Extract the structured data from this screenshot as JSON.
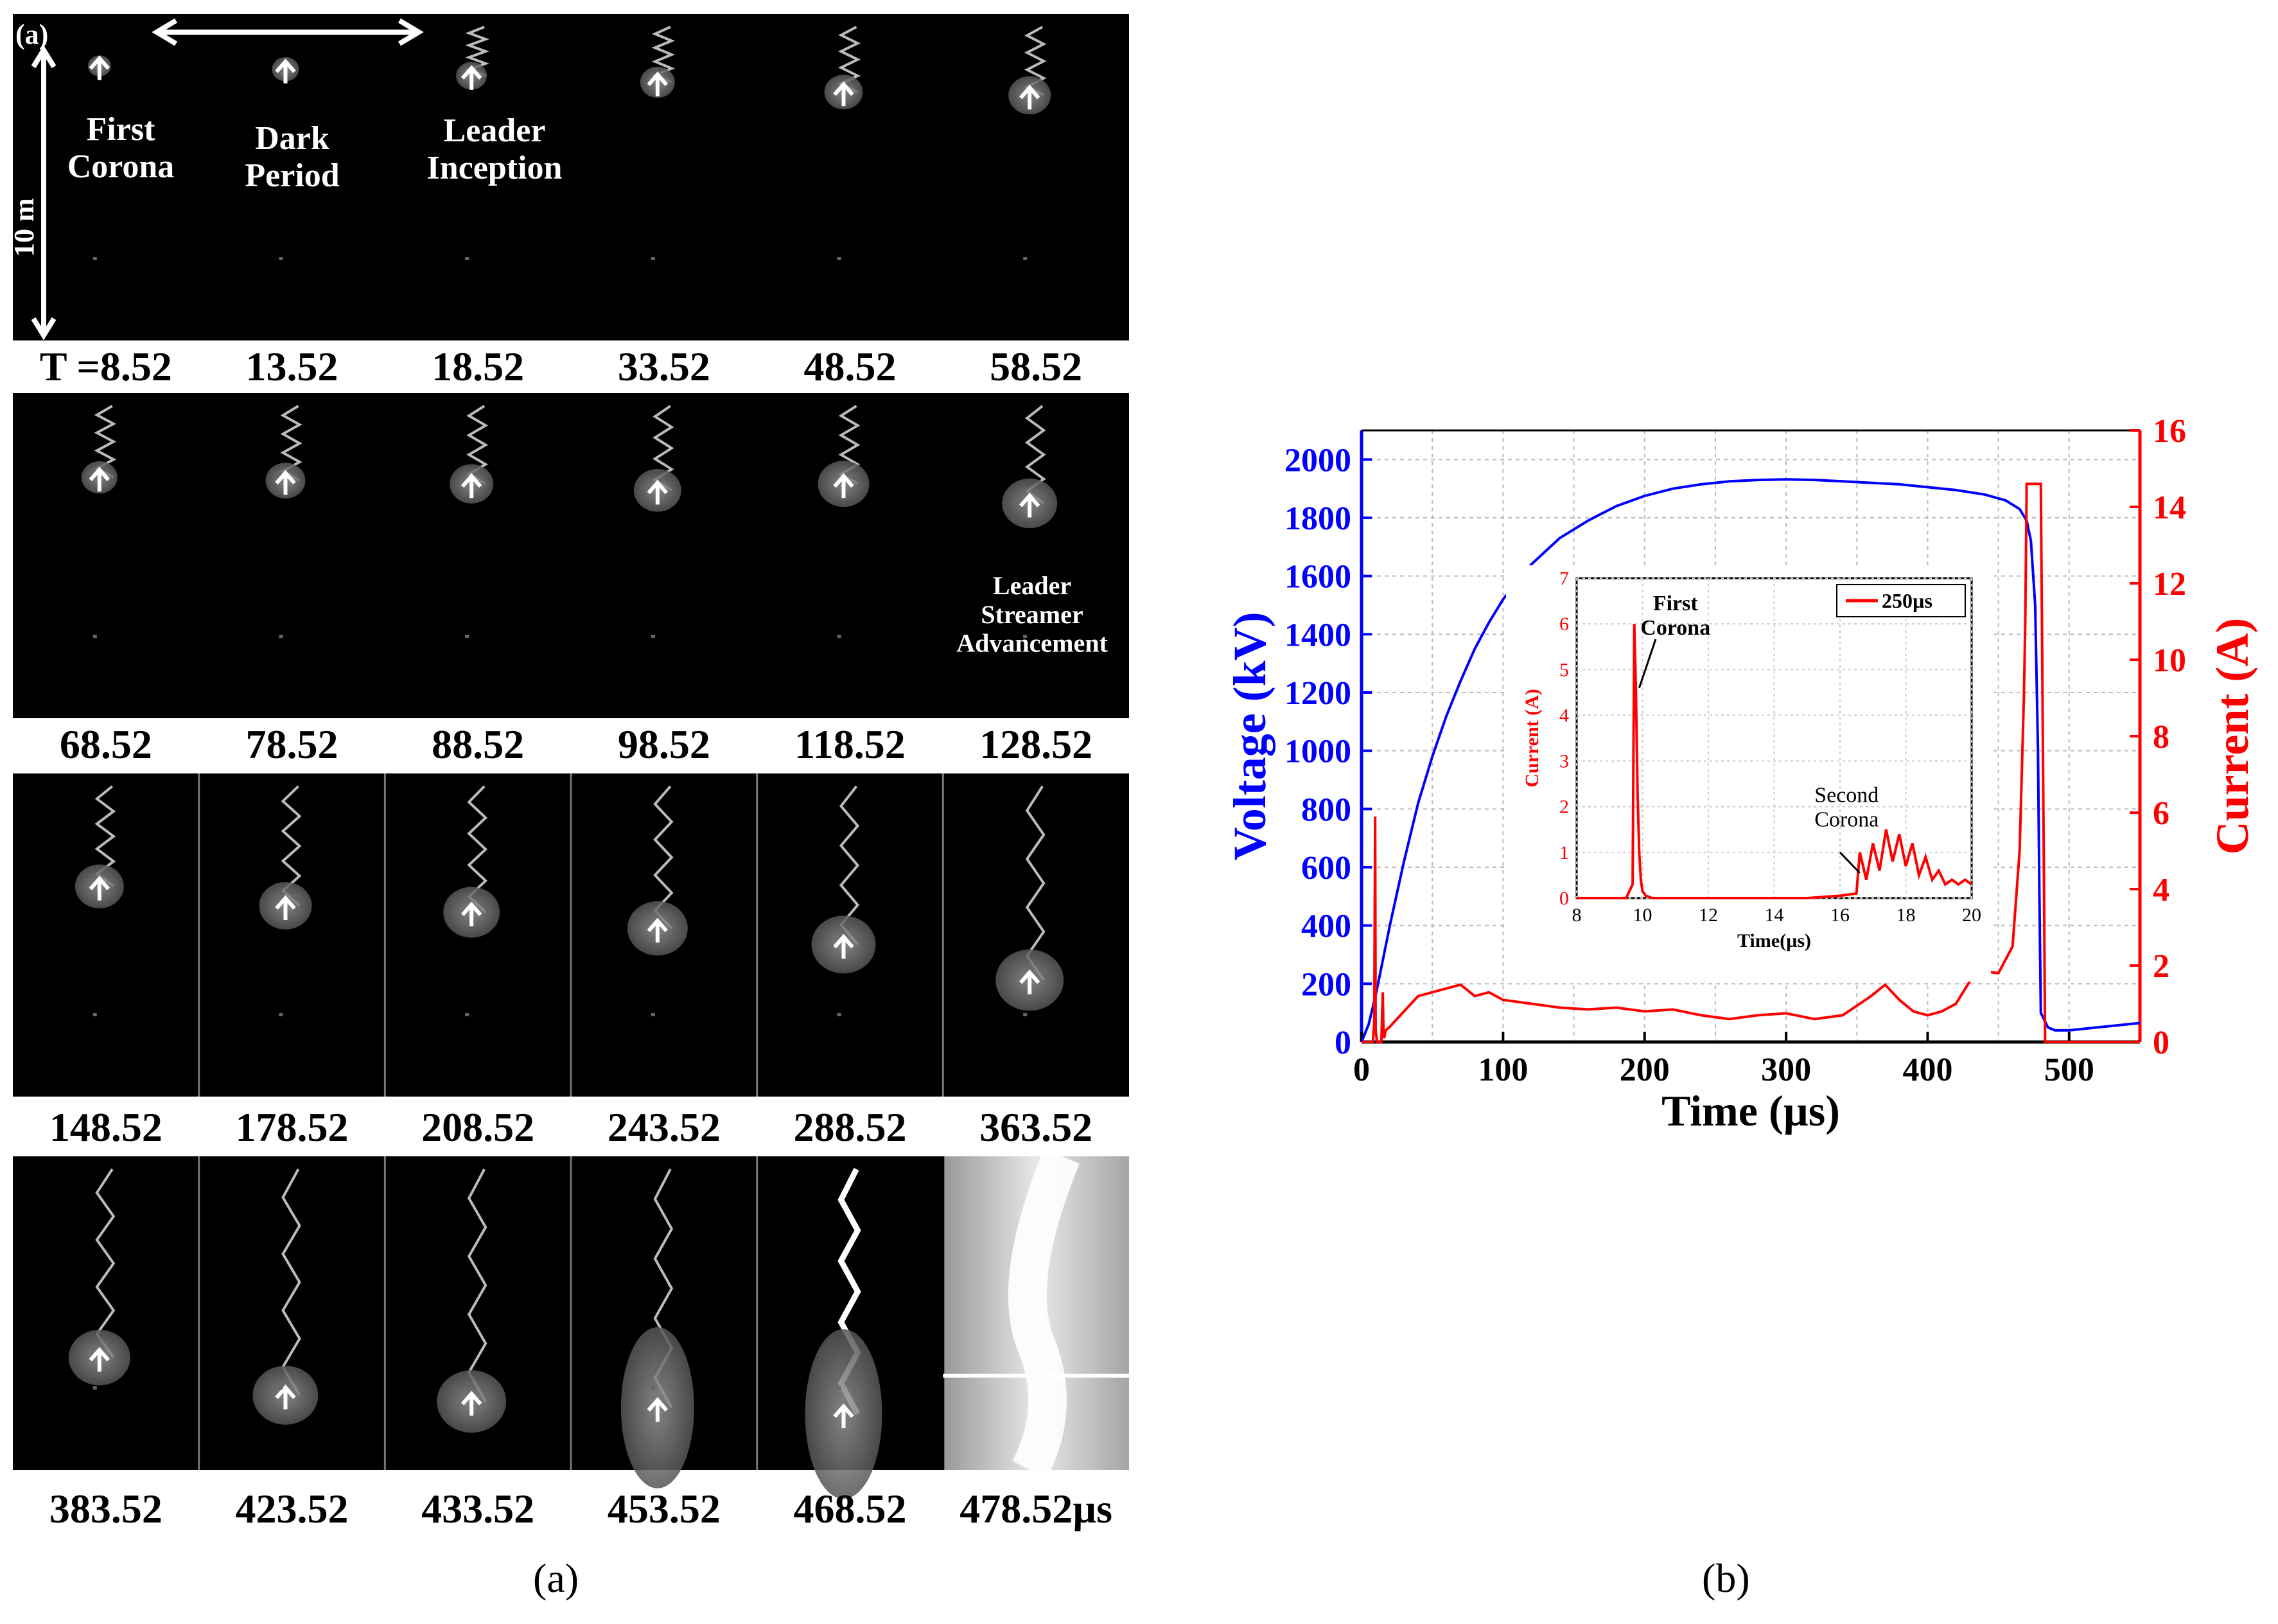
{
  "panel_a": {
    "panel_tag": "(a)",
    "scale_label": "10 m",
    "time_prefix": "T =",
    "time_unit": "µs",
    "phase_labels": {
      "first_corona": [
        "First",
        "Corona"
      ],
      "dark_period": [
        "Dark",
        "Period"
      ],
      "leader_inception": [
        "Leader",
        "Inception"
      ],
      "leader_streamer": [
        "Leader",
        "Streamer",
        "Advancement"
      ]
    },
    "rows": [
      [
        "8.52",
        "13.52",
        "18.52",
        "33.52",
        "48.52",
        "58.52"
      ],
      [
        "68.52",
        "78.52",
        "88.52",
        "98.52",
        "118.52",
        "128.52"
      ],
      [
        "148.52",
        "178.52",
        "208.52",
        "243.52",
        "288.52",
        "363.52"
      ],
      [
        "383.52",
        "423.52",
        "433.52",
        "453.52",
        "468.52",
        "478.52"
      ]
    ]
  },
  "captions": {
    "a": "(a)",
    "b": "(b)"
  },
  "chart_data": [
    {
      "type": "line",
      "title": "",
      "xlabel": "Time (µs)",
      "ylabel": "Voltage (kV)",
      "y2label": "Current (A)",
      "xlim": [
        0,
        550
      ],
      "ylim": [
        0,
        2100
      ],
      "y2lim": [
        0,
        16
      ],
      "xticks": [
        0,
        100,
        200,
        300,
        400,
        500
      ],
      "yticks": [
        0,
        200,
        400,
        600,
        800,
        1000,
        1200,
        1400,
        1600,
        1800,
        2000
      ],
      "y2ticks": [
        0,
        2,
        4,
        6,
        8,
        10,
        12,
        14,
        16
      ],
      "grid": true,
      "colors": {
        "voltage": "#0000ff",
        "current": "#ff0000"
      },
      "series": [
        {
          "name": "Voltage",
          "axis": "left",
          "x": [
            0,
            5,
            10,
            20,
            30,
            40,
            50,
            60,
            70,
            80,
            90,
            100,
            120,
            140,
            160,
            180,
            200,
            220,
            240,
            260,
            280,
            300,
            320,
            340,
            360,
            380,
            400,
            420,
            440,
            455,
            465,
            470,
            473,
            476,
            478,
            479,
            480,
            485,
            490,
            500,
            520,
            540,
            550
          ],
          "values": [
            0,
            60,
            160,
            400,
            620,
            820,
            980,
            1120,
            1240,
            1350,
            1440,
            1520,
            1640,
            1730,
            1790,
            1840,
            1875,
            1900,
            1915,
            1925,
            1930,
            1932,
            1930,
            1925,
            1920,
            1915,
            1905,
            1895,
            1880,
            1860,
            1830,
            1790,
            1720,
            1500,
            1000,
            500,
            100,
            50,
            40,
            40,
            50,
            60,
            65
          ]
        },
        {
          "name": "Current",
          "axis": "right",
          "x": [
            0,
            8,
            9,
            9.6,
            10,
            11,
            12,
            14,
            15,
            15.5,
            16,
            17,
            20,
            30,
            40,
            50,
            60,
            70,
            80,
            90,
            100,
            120,
            140,
            160,
            180,
            200,
            220,
            240,
            260,
            280,
            300,
            320,
            340,
            360,
            370,
            380,
            390,
            400,
            410,
            420,
            430,
            435,
            440,
            450,
            460,
            465,
            468,
            469,
            470,
            471,
            480,
            481,
            482,
            483,
            490,
            550
          ],
          "values": [
            0,
            0,
            0.5,
            5.9,
            0.3,
            0,
            0,
            0,
            1.3,
            0.2,
            0.1,
            0.3,
            0.4,
            0.8,
            1.2,
            1.3,
            1.4,
            1.5,
            1.2,
            1.3,
            1.1,
            1.0,
            0.9,
            0.85,
            0.9,
            0.8,
            0.85,
            0.7,
            0.6,
            0.7,
            0.75,
            0.6,
            0.7,
            1.2,
            1.5,
            1.1,
            0.8,
            0.7,
            0.8,
            1.0,
            1.6,
            1.9,
            1.85,
            1.8,
            2.5,
            5.0,
            9.0,
            11.0,
            14.6,
            14.6,
            14.6,
            10.0,
            5.0,
            0,
            0,
            0
          ]
        }
      ],
      "inset": {
        "xlabel": "Time(µs)",
        "ylabel": "Current (A)",
        "xlim": [
          8,
          20
        ],
        "ylim": [
          0,
          7
        ],
        "xticks": [
          8,
          10,
          12,
          14,
          16,
          18,
          20
        ],
        "yticks": [
          0,
          1,
          2,
          3,
          4,
          5,
          6,
          7
        ],
        "legend": "250µs",
        "annotations": {
          "first_corona": [
            "First",
            "Corona"
          ],
          "second_corona": [
            "Second",
            "Corona"
          ]
        },
        "series": [
          {
            "name": "250µs",
            "x": [
              8,
              9.5,
              9.7,
              9.75,
              9.8,
              9.85,
              9.9,
              9.95,
              10.0,
              10.1,
              10.3,
              11,
              12,
              13,
              14,
              15,
              16,
              16.5,
              16.6,
              16.8,
              17.0,
              17.2,
              17.4,
              17.6,
              17.8,
              18.0,
              18.2,
              18.4,
              18.6,
              18.8,
              19.0,
              19.2,
              19.4,
              19.6,
              19.8,
              20
            ],
            "values": [
              0,
              0,
              0.3,
              6.0,
              4.5,
              2.3,
              1.0,
              0.4,
              0.15,
              0.05,
              0,
              0,
              0,
              0,
              0,
              0,
              0.05,
              0.1,
              1.0,
              0.4,
              1.2,
              0.6,
              1.5,
              0.8,
              1.4,
              0.7,
              1.2,
              0.5,
              0.9,
              0.4,
              0.6,
              0.3,
              0.4,
              0.3,
              0.4,
              0.3
            ]
          }
        ]
      }
    }
  ]
}
